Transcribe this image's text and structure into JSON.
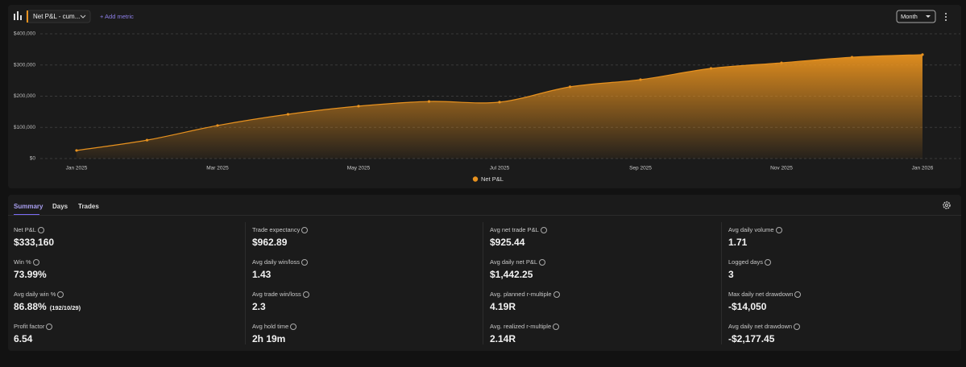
{
  "toolbar": {
    "metric": "Net P&L - cum...",
    "add_metric": "+ Add metric",
    "period": "Month"
  },
  "chart_data": {
    "type": "area",
    "x": [
      "Jan 2025",
      null,
      "Mar 2025",
      null,
      "May 2025",
      null,
      "Jul 2025",
      null,
      "Sep 2025",
      null,
      "Nov 2025",
      null,
      "Jan 2026"
    ],
    "series": [
      {
        "name": "Net P&L",
        "color": "#e8921f",
        "values": [
          26000,
          59000,
          106000,
          142000,
          168000,
          183000,
          181000,
          230000,
          253000,
          289000,
          307000,
          325000,
          333160
        ]
      }
    ],
    "ylim": [
      0,
      400000
    ],
    "yticks": [
      {
        "value": 0,
        "label": "$0"
      },
      {
        "value": 100000,
        "label": "$100,000"
      },
      {
        "value": 200000,
        "label": "$200,000"
      },
      {
        "value": 300000,
        "label": "$300,000"
      },
      {
        "value": 400000,
        "label": "$400,000"
      }
    ],
    "grid": true,
    "legend": "bottom"
  },
  "tabs": [
    "Summary",
    "Days",
    "Trades"
  ],
  "stats": [
    {
      "label": "Net P&L",
      "value": "$333,160"
    },
    {
      "label": "Trade expectancy",
      "value": "$962.89"
    },
    {
      "label": "Avg net trade P&L",
      "value": "$925.44"
    },
    {
      "label": "Avg daily volume",
      "value": "1.71"
    },
    {
      "label": "Win %",
      "value": "73.99%"
    },
    {
      "label": "Avg daily win/loss",
      "value": "1.43"
    },
    {
      "label": "Avg daily net P&L",
      "value": "$1,442.25"
    },
    {
      "label": "Logged days",
      "value": "3"
    },
    {
      "label": "Avg daily win %",
      "value": "86.88%",
      "note": "(192/10/29)"
    },
    {
      "label": "Avg trade win/loss",
      "value": "2.3"
    },
    {
      "label": "Avg. planned r-multiple",
      "value": "4.19R"
    },
    {
      "label": "Max daily net drawdown",
      "value": "-$14,050"
    },
    {
      "label": "Profit factor",
      "value": "6.54"
    },
    {
      "label": "Avg hold time",
      "value": "2h 19m"
    },
    {
      "label": "Avg. realized r-multiple",
      "value": "2.14R"
    },
    {
      "label": "Avg daily net drawdown",
      "value": "-$2,177.45"
    }
  ]
}
